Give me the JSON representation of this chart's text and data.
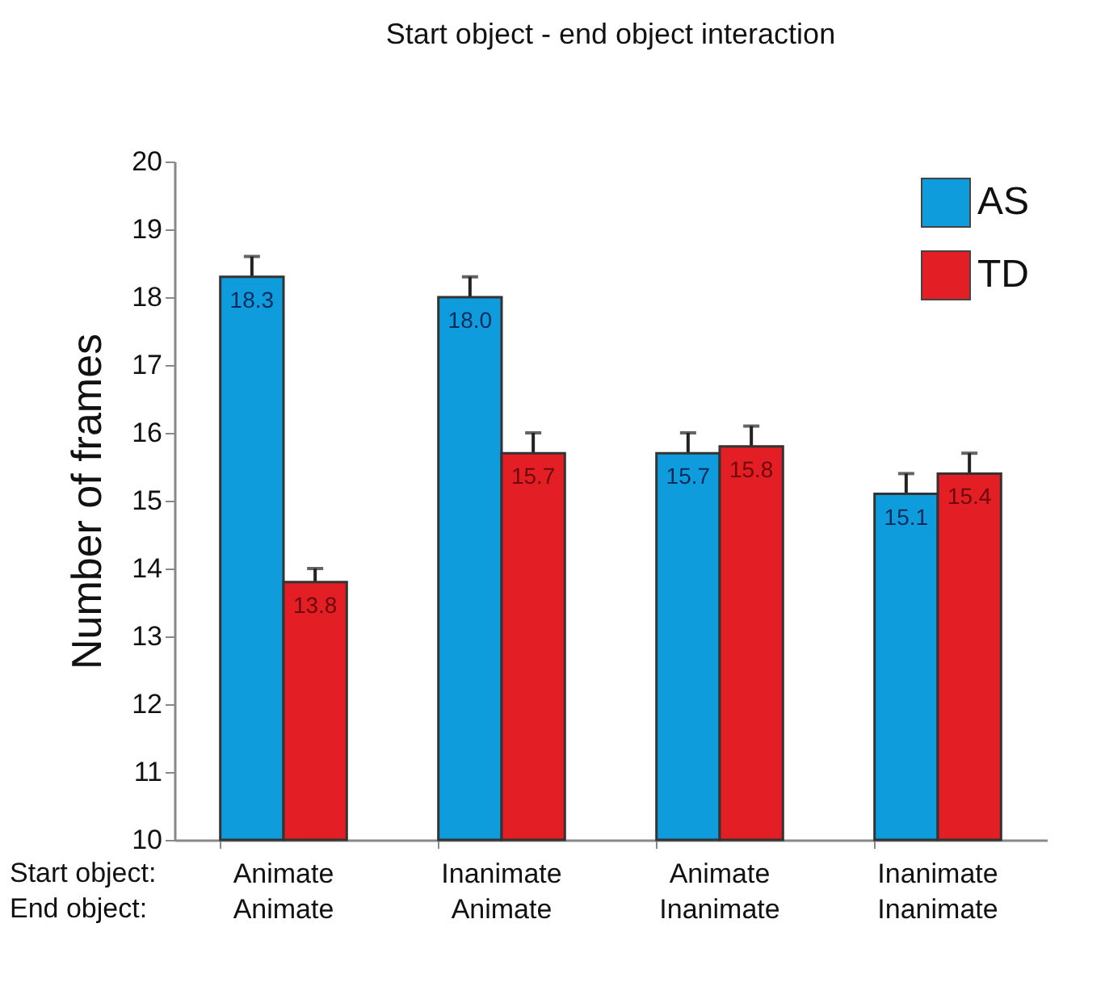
{
  "chart_data": {
    "type": "bar",
    "title": "Start object - end object interaction",
    "ylabel": "Number of frames",
    "categories": [
      "Animate\nAnimate",
      "Inanimate\nAnimate",
      "Animate\nInanimate",
      "Inanimate\nInanimate"
    ],
    "series": [
      {
        "name": "AS",
        "color": "#0f9cdc",
        "values": [
          18.3,
          18.0,
          15.7,
          15.1
        ],
        "errors": [
          0.3,
          0.3,
          0.3,
          0.3
        ],
        "value_labels": [
          "18.3",
          "18.0",
          "15.7",
          "15.1"
        ]
      },
      {
        "name": "TD",
        "color": "#e31e25",
        "values": [
          13.8,
          15.7,
          15.8,
          15.4
        ],
        "errors": [
          0.2,
          0.3,
          0.3,
          0.3
        ],
        "value_labels": [
          "13.8",
          "15.7",
          "15.8",
          "15.4"
        ]
      }
    ],
    "ylim": [
      10,
      20
    ],
    "yticks": [
      10,
      11,
      12,
      13,
      14,
      15,
      16,
      17,
      18,
      19,
      20
    ],
    "legend": "top right",
    "grid": false,
    "annotations": [
      "Start object:",
      "End object:"
    ]
  }
}
